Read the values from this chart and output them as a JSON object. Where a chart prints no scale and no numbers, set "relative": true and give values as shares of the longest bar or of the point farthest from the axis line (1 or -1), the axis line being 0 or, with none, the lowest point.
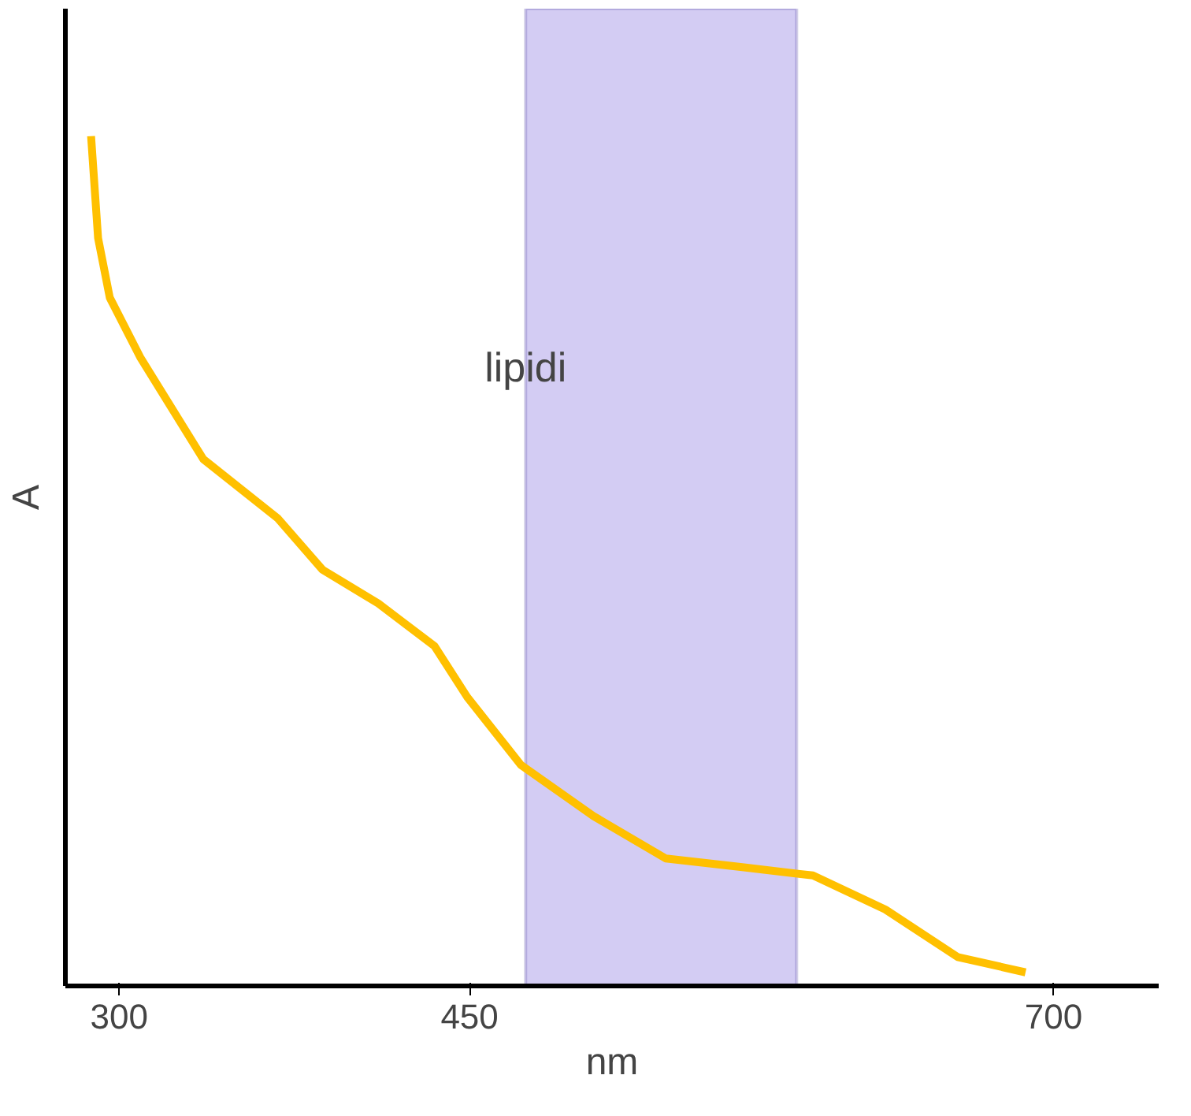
{
  "chart_data": {
    "type": "line",
    "relative": true,
    "xlabel": "nm",
    "ylabel": "A",
    "xlim": [
      277,
      745
    ],
    "xticks": [
      300,
      450,
      700
    ],
    "grid": false,
    "x": [
      288,
      291,
      296,
      309,
      336,
      368,
      387,
      411,
      435,
      449,
      472,
      503,
      534,
      566,
      597,
      628,
      659,
      688
    ],
    "series": [
      {
        "color": "#ffc000",
        "values": [
          1.0,
          0.88,
          0.81,
          0.74,
          0.62,
          0.55,
          0.49,
          0.45,
          0.4,
          0.34,
          0.26,
          0.2,
          0.15,
          0.14,
          0.13,
          0.09,
          0.034,
          0.016
        ]
      }
    ],
    "bands": [
      {
        "axis": "x",
        "from": 474,
        "to": 590,
        "label": "lipidi",
        "color": "#c8bff0"
      }
    ]
  }
}
